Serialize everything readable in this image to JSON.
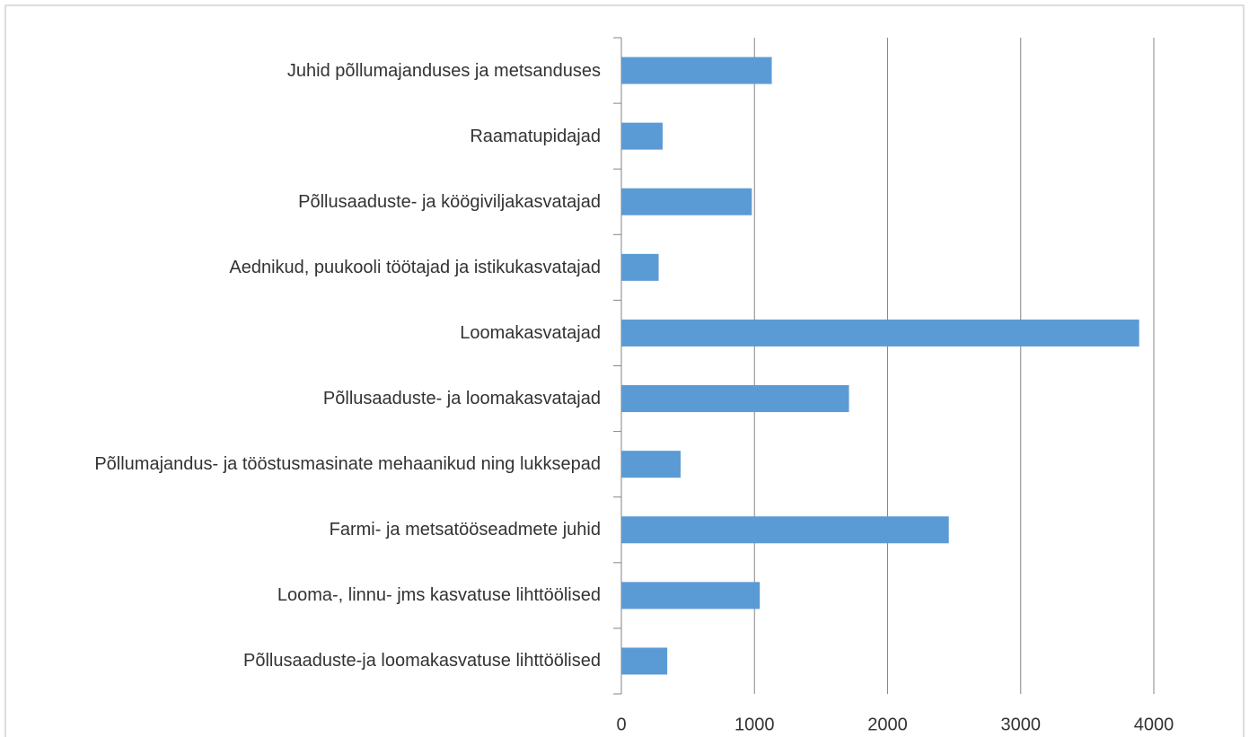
{
  "chart_data": {
    "type": "bar",
    "orientation": "horizontal",
    "categories": [
      "Juhid põllumajanduses ja metsanduses",
      "Raamatupidajad",
      "Põllusaaduste- ja köögiviljakasvatajad",
      "Aednikud, puukooli töötajad ja istikukasvatajad",
      "Loomakasvatajad",
      "Põllusaaduste- ja loomakasvatajad",
      "Põllumajandus- ja tööstusmasinate mehaanikud ning lukksepad",
      "Farmi- ja metsatööseadmete juhid",
      "Looma-, linnu- jms kasvatuse lihttöölised",
      "Põllusaaduste-ja loomakasvatuse lihttöölised"
    ],
    "values": [
      1130,
      310,
      980,
      280,
      3890,
      1710,
      445,
      2460,
      1040,
      345
    ],
    "color": "#5b9bd5",
    "xlim": [
      0,
      4000
    ],
    "xticks": [
      0,
      1000,
      2000,
      3000,
      4000
    ],
    "grid": true
  }
}
